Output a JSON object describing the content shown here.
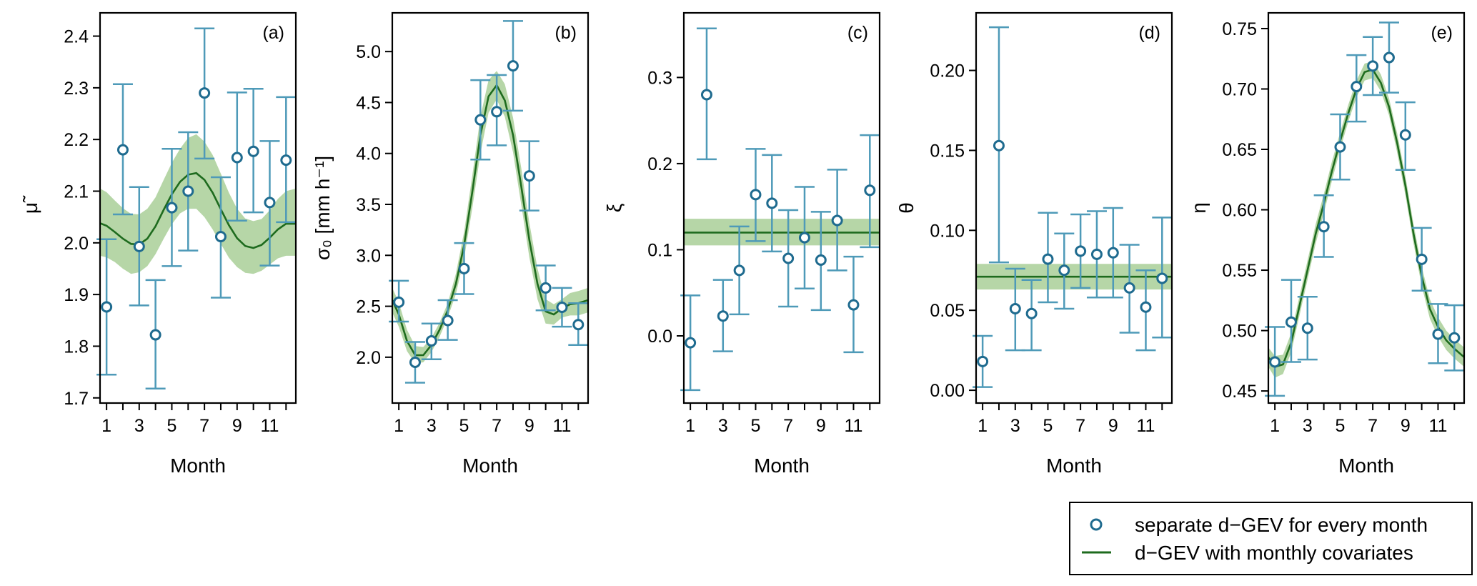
{
  "figure": {
    "legend": [
      {
        "label": "separate d−GEV for every month",
        "marker": "open-circle"
      },
      {
        "label": "d−GEV with monthly covariates",
        "marker": "line"
      }
    ],
    "colors": {
      "points": "#1f6b8f",
      "errorbars": "#4e9ab8",
      "line": "#1e6b1e",
      "band": "#a9cf98"
    }
  },
  "chart_data": [
    {
      "type": "scatter",
      "panel": "(a)",
      "ylabel": "μ̃",
      "xlabel": "Month",
      "xlim": [
        0.6,
        12.6
      ],
      "ylim": [
        1.69,
        2.445
      ],
      "yticks": [
        1.7,
        1.8,
        1.9,
        2.0,
        2.1,
        2.2,
        2.3,
        2.4
      ],
      "yticklabels": [
        "1.7",
        "1.8",
        "1.9",
        "2.0",
        "2.1",
        "2.2",
        "2.3",
        "2.4"
      ],
      "xticks": [
        1,
        2,
        3,
        4,
        5,
        6,
        7,
        8,
        9,
        10,
        11,
        12
      ],
      "xticklabels": [
        "1",
        "",
        "3",
        "",
        "5",
        "",
        "7",
        "",
        "9",
        "",
        "11",
        ""
      ],
      "points": {
        "month": [
          1,
          2,
          3,
          4,
          5,
          6,
          7,
          8,
          9,
          10,
          11,
          12
        ],
        "value": [
          1.876,
          2.18,
          1.993,
          1.822,
          2.068,
          2.1,
          2.29,
          2.012,
          2.165,
          2.177,
          2.078,
          2.16
        ],
        "lower": [
          1.745,
          2.055,
          1.879,
          1.718,
          1.955,
          1.985,
          2.163,
          1.894,
          2.043,
          2.059,
          1.956,
          2.04
        ],
        "upper": [
          2.007,
          2.307,
          2.108,
          1.928,
          2.182,
          2.214,
          2.415,
          2.127,
          2.291,
          2.298,
          2.197,
          2.282
        ]
      },
      "curve": {
        "month": [
          0.6,
          1,
          1.5,
          2,
          2.5,
          3,
          3.5,
          4,
          4.5,
          5,
          5.5,
          6,
          6.5,
          7,
          7.5,
          8,
          8.5,
          9,
          9.5,
          10,
          10.5,
          11,
          11.5,
          12,
          12.6
        ],
        "value": [
          2.038,
          2.033,
          2.021,
          2.008,
          1.998,
          1.997,
          2.008,
          2.032,
          2.064,
          2.094,
          2.118,
          2.132,
          2.135,
          2.122,
          2.097,
          2.065,
          2.034,
          2.009,
          1.994,
          1.99,
          1.996,
          2.01,
          2.026,
          2.037,
          2.037
        ],
        "lower": [
          1.975,
          1.972,
          1.963,
          1.95,
          1.94,
          1.943,
          1.955,
          1.978,
          2.008,
          2.036,
          2.057,
          2.066,
          2.066,
          2.05,
          2.026,
          1.998,
          1.971,
          1.953,
          1.942,
          1.94,
          1.946,
          1.958,
          1.97,
          1.975,
          1.975
        ],
        "upper": [
          2.105,
          2.098,
          2.082,
          2.067,
          2.056,
          2.055,
          2.066,
          2.088,
          2.122,
          2.155,
          2.182,
          2.203,
          2.21,
          2.196,
          2.17,
          2.134,
          2.097,
          2.066,
          2.047,
          2.042,
          2.046,
          2.063,
          2.085,
          2.1,
          2.105
        ]
      }
    },
    {
      "type": "scatter",
      "panel": "(b)",
      "ylabel": "σ₀ [mm h⁻¹]",
      "xlabel": "Month",
      "xlim": [
        0.6,
        12.6
      ],
      "ylim": [
        1.55,
        5.38
      ],
      "yticks": [
        2.0,
        2.5,
        3.0,
        3.5,
        4.0,
        4.5,
        5.0
      ],
      "yticklabels": [
        "2.0",
        "2.5",
        "3.0",
        "3.5",
        "4.0",
        "4.5",
        "5.0"
      ],
      "xticks": [
        1,
        2,
        3,
        4,
        5,
        6,
        7,
        8,
        9,
        10,
        11,
        12
      ],
      "xticklabels": [
        "1",
        "",
        "3",
        "",
        "5",
        "",
        "7",
        "",
        "9",
        "",
        "11",
        ""
      ],
      "points": {
        "month": [
          1,
          2,
          3,
          4,
          5,
          6,
          7,
          8,
          9,
          10,
          11,
          12
        ],
        "value": [
          2.54,
          1.95,
          2.16,
          2.36,
          2.87,
          4.33,
          4.41,
          4.86,
          3.78,
          2.68,
          2.49,
          2.32
        ],
        "lower": [
          2.35,
          1.75,
          1.98,
          2.17,
          2.62,
          3.94,
          4.08,
          4.42,
          3.44,
          2.46,
          2.3,
          2.12
        ],
        "upper": [
          2.75,
          2.15,
          2.33,
          2.56,
          3.12,
          4.72,
          4.77,
          5.3,
          4.12,
          2.9,
          2.68,
          2.53
        ]
      },
      "curve": {
        "month": [
          0.6,
          1,
          1.5,
          2,
          2.5,
          3,
          3.5,
          4,
          4.5,
          5,
          5.5,
          6,
          6.5,
          7,
          7.5,
          8,
          8.5,
          9,
          9.5,
          10,
          10.5,
          11,
          11.5,
          12,
          12.6
        ],
        "value": [
          2.56,
          2.42,
          2.16,
          2.02,
          2.02,
          2.12,
          2.27,
          2.46,
          2.72,
          3.1,
          3.62,
          4.18,
          4.56,
          4.67,
          4.52,
          4.18,
          3.68,
          3.15,
          2.72,
          2.45,
          2.42,
          2.48,
          2.52,
          2.53,
          2.56
        ],
        "lower": [
          2.44,
          2.3,
          2.06,
          1.94,
          1.95,
          2.05,
          2.2,
          2.39,
          2.62,
          2.97,
          3.46,
          4.0,
          4.4,
          4.53,
          4.36,
          4.01,
          3.5,
          2.98,
          2.57,
          2.33,
          2.32,
          2.39,
          2.41,
          2.41,
          2.44
        ],
        "upper": [
          2.68,
          2.54,
          2.27,
          2.11,
          2.1,
          2.19,
          2.34,
          2.53,
          2.82,
          3.23,
          3.78,
          4.36,
          4.72,
          4.81,
          4.68,
          4.35,
          3.86,
          3.32,
          2.87,
          2.57,
          2.52,
          2.57,
          2.63,
          2.65,
          2.68
        ]
      }
    },
    {
      "type": "scatter",
      "panel": "(c)",
      "ylabel": "ξ",
      "xlabel": "Month",
      "xlim": [
        0.6,
        12.6
      ],
      "ylim": [
        -0.078,
        0.375
      ],
      "yticks": [
        0.0,
        0.1,
        0.2,
        0.3
      ],
      "yticklabels": [
        "0.0",
        "0.1",
        "0.2",
        "0.3"
      ],
      "xticks": [
        1,
        2,
        3,
        4,
        5,
        6,
        7,
        8,
        9,
        10,
        11,
        12
      ],
      "xticklabels": [
        "1",
        "",
        "3",
        "",
        "5",
        "",
        "7",
        "",
        "9",
        "",
        "11",
        ""
      ],
      "points": {
        "month": [
          1,
          2,
          3,
          4,
          5,
          6,
          7,
          8,
          9,
          10,
          11,
          12
        ],
        "value": [
          -0.008,
          0.28,
          0.023,
          0.076,
          0.164,
          0.154,
          0.09,
          0.114,
          0.088,
          0.134,
          0.036,
          0.169
        ],
        "lower": [
          -0.063,
          0.205,
          -0.018,
          0.025,
          0.11,
          0.098,
          0.034,
          0.055,
          0.03,
          0.076,
          -0.019,
          0.103
        ],
        "upper": [
          0.047,
          0.357,
          0.065,
          0.127,
          0.217,
          0.21,
          0.146,
          0.173,
          0.144,
          0.193,
          0.092,
          0.233
        ]
      },
      "curve": {
        "month": [
          0.6,
          12.6
        ],
        "value": [
          0.12,
          0.12
        ],
        "lower": [
          0.105,
          0.105
        ],
        "upper": [
          0.136,
          0.136
        ]
      }
    },
    {
      "type": "scatter",
      "panel": "(d)",
      "ylabel": "θ",
      "xlabel": "Month",
      "xlim": [
        0.6,
        12.6
      ],
      "ylim": [
        -0.008,
        0.236
      ],
      "yticks": [
        0.0,
        0.05,
        0.1,
        0.15,
        0.2
      ],
      "yticklabels": [
        "0.00",
        "0.05",
        "0.10",
        "0.15",
        "0.20"
      ],
      "xticks": [
        1,
        2,
        3,
        4,
        5,
        6,
        7,
        8,
        9,
        10,
        11,
        12
      ],
      "xticklabels": [
        "1",
        "",
        "3",
        "",
        "5",
        "",
        "7",
        "",
        "9",
        "",
        "11",
        ""
      ],
      "points": {
        "month": [
          1,
          2,
          3,
          4,
          5,
          6,
          7,
          8,
          9,
          10,
          11,
          12
        ],
        "value": [
          0.018,
          0.153,
          0.051,
          0.048,
          0.082,
          0.075,
          0.087,
          0.085,
          0.086,
          0.064,
          0.052,
          0.07
        ],
        "lower": [
          0.002,
          0.08,
          0.025,
          0.025,
          0.055,
          0.051,
          0.064,
          0.058,
          0.058,
          0.036,
          0.025,
          0.033
        ],
        "upper": [
          0.034,
          0.227,
          0.076,
          0.069,
          0.111,
          0.098,
          0.11,
          0.112,
          0.114,
          0.091,
          0.075,
          0.108
        ]
      },
      "curve": {
        "month": [
          0.6,
          12.6
        ],
        "value": [
          0.071,
          0.071
        ],
        "lower": [
          0.063,
          0.063
        ],
        "upper": [
          0.079,
          0.079
        ]
      }
    },
    {
      "type": "scatter",
      "panel": "(e)",
      "ylabel": "η",
      "xlabel": "Month",
      "xlim": [
        0.6,
        12.6
      ],
      "ylim": [
        0.44,
        0.763
      ],
      "yticks": [
        0.45,
        0.5,
        0.55,
        0.6,
        0.65,
        0.7,
        0.75
      ],
      "yticklabels": [
        "0.45",
        "0.50",
        "0.55",
        "0.60",
        "0.65",
        "0.70",
        "0.75"
      ],
      "xticks": [
        1,
        2,
        3,
        4,
        5,
        6,
        7,
        8,
        9,
        10,
        11,
        12
      ],
      "xticklabels": [
        "1",
        "",
        "3",
        "",
        "5",
        "",
        "7",
        "",
        "9",
        "",
        "11",
        ""
      ],
      "points": {
        "month": [
          1,
          2,
          3,
          4,
          5,
          6,
          7,
          8,
          9,
          10,
          11,
          12
        ],
        "value": [
          0.474,
          0.507,
          0.502,
          0.586,
          0.652,
          0.702,
          0.719,
          0.726,
          0.662,
          0.559,
          0.497,
          0.494
        ],
        "lower": [
          0.446,
          0.474,
          0.476,
          0.561,
          0.625,
          0.673,
          0.695,
          0.697,
          0.633,
          0.533,
          0.473,
          0.467
        ],
        "upper": [
          0.503,
          0.542,
          0.528,
          0.612,
          0.679,
          0.728,
          0.743,
          0.755,
          0.689,
          0.585,
          0.522,
          0.521
        ]
      },
      "curve": {
        "month": [
          0.6,
          1,
          1.5,
          2,
          2.5,
          3,
          3.5,
          4,
          4.5,
          5,
          5.5,
          6,
          6.5,
          7,
          7.5,
          8,
          8.5,
          9,
          9.5,
          10,
          10.5,
          11,
          11.5,
          12,
          12.6
        ],
        "value": [
          0.478,
          0.47,
          0.472,
          0.49,
          0.52,
          0.55,
          0.58,
          0.605,
          0.632,
          0.657,
          0.68,
          0.7,
          0.714,
          0.716,
          0.705,
          0.685,
          0.655,
          0.62,
          0.58,
          0.545,
          0.518,
          0.503,
          0.492,
          0.485,
          0.478
        ],
        "lower": [
          0.47,
          0.461,
          0.464,
          0.482,
          0.512,
          0.542,
          0.572,
          0.597,
          0.624,
          0.65,
          0.673,
          0.693,
          0.707,
          0.709,
          0.698,
          0.678,
          0.647,
          0.612,
          0.572,
          0.537,
          0.51,
          0.495,
          0.484,
          0.477,
          0.47
        ],
        "upper": [
          0.486,
          0.479,
          0.48,
          0.498,
          0.528,
          0.558,
          0.588,
          0.613,
          0.64,
          0.664,
          0.687,
          0.707,
          0.721,
          0.723,
          0.712,
          0.692,
          0.663,
          0.628,
          0.588,
          0.553,
          0.526,
          0.511,
          0.5,
          0.493,
          0.486
        ]
      }
    }
  ]
}
